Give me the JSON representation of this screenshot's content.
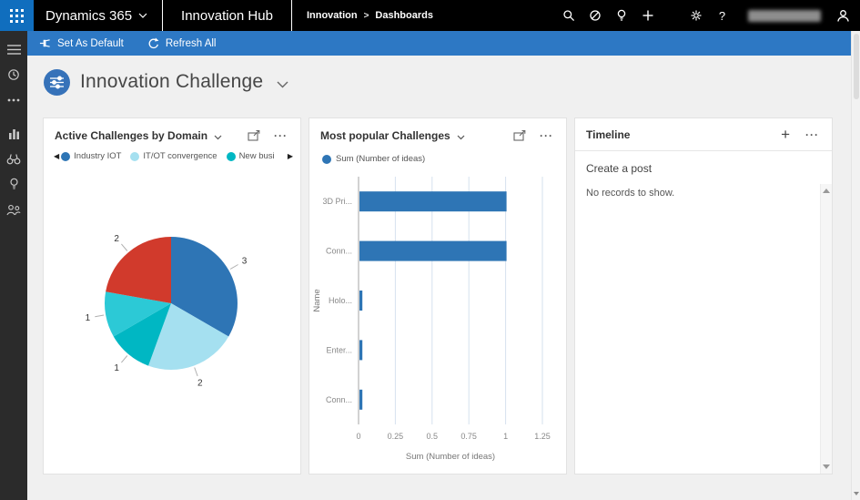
{
  "topbar": {
    "brand": "Dynamics 365",
    "app": "Innovation Hub",
    "breadcrumb": {
      "area": "Innovation",
      "sep": ">",
      "page": "Dashboards"
    },
    "help_label": "?"
  },
  "commandbar": {
    "set_default_label": "Set As Default",
    "refresh_all_label": "Refresh All"
  },
  "page": {
    "title": "Innovation Challenge"
  },
  "icons": {
    "more": "···",
    "plus": "+",
    "legend_prev": "◀",
    "legend_next": "▶"
  },
  "cards": {
    "pie": {
      "title": "Active Challenges by Domain",
      "legend": [
        {
          "label": "Industry IOT",
          "color": "#2e75b5"
        },
        {
          "label": "IT/OT convergence",
          "color": "#a5e0f0"
        },
        {
          "label": "New busi",
          "color": "#00b7c3"
        }
      ]
    },
    "bar": {
      "title": "Most popular Challenges"
    },
    "timeline": {
      "title": "Timeline",
      "create_post_label": "Create a post",
      "empty_message": "No records to show."
    }
  },
  "chart_data": [
    {
      "type": "pie",
      "title": "Active Challenges by Domain",
      "legend_position": "top",
      "slices": [
        {
          "name": "Industry IOT",
          "value": 3,
          "data_label": "3",
          "color": "#2e75b5"
        },
        {
          "name": "IT/OT convergence",
          "value": 2,
          "data_label": "2",
          "color": "#a5e0f0"
        },
        {
          "name": "New busi",
          "value": 1,
          "data_label": "1",
          "color": "#00b7c3"
        },
        {
          "name": "",
          "value": 1,
          "data_label": "1",
          "color": "#2cc9d6"
        },
        {
          "name": "",
          "value": 2,
          "data_label": "2",
          "color": "#d13a2c"
        }
      ]
    },
    {
      "type": "bar",
      "orientation": "horizontal",
      "title": "Most popular Challenges",
      "series_name": "Sum (Number of ideas)",
      "categories": [
        "3D Pri...",
        "Conn...",
        "Holo...",
        "Enter...",
        "Conn..."
      ],
      "values": [
        1,
        1,
        0.02,
        0.02,
        0.02
      ],
      "color": "#2e75b5",
      "xlabel": "Sum (Number of ideas)",
      "ylabel": "Name",
      "xlim": [
        0,
        1.25
      ],
      "xticks": [
        0,
        0.25,
        0.5,
        0.75,
        1,
        1.25
      ],
      "grid": true
    }
  ]
}
